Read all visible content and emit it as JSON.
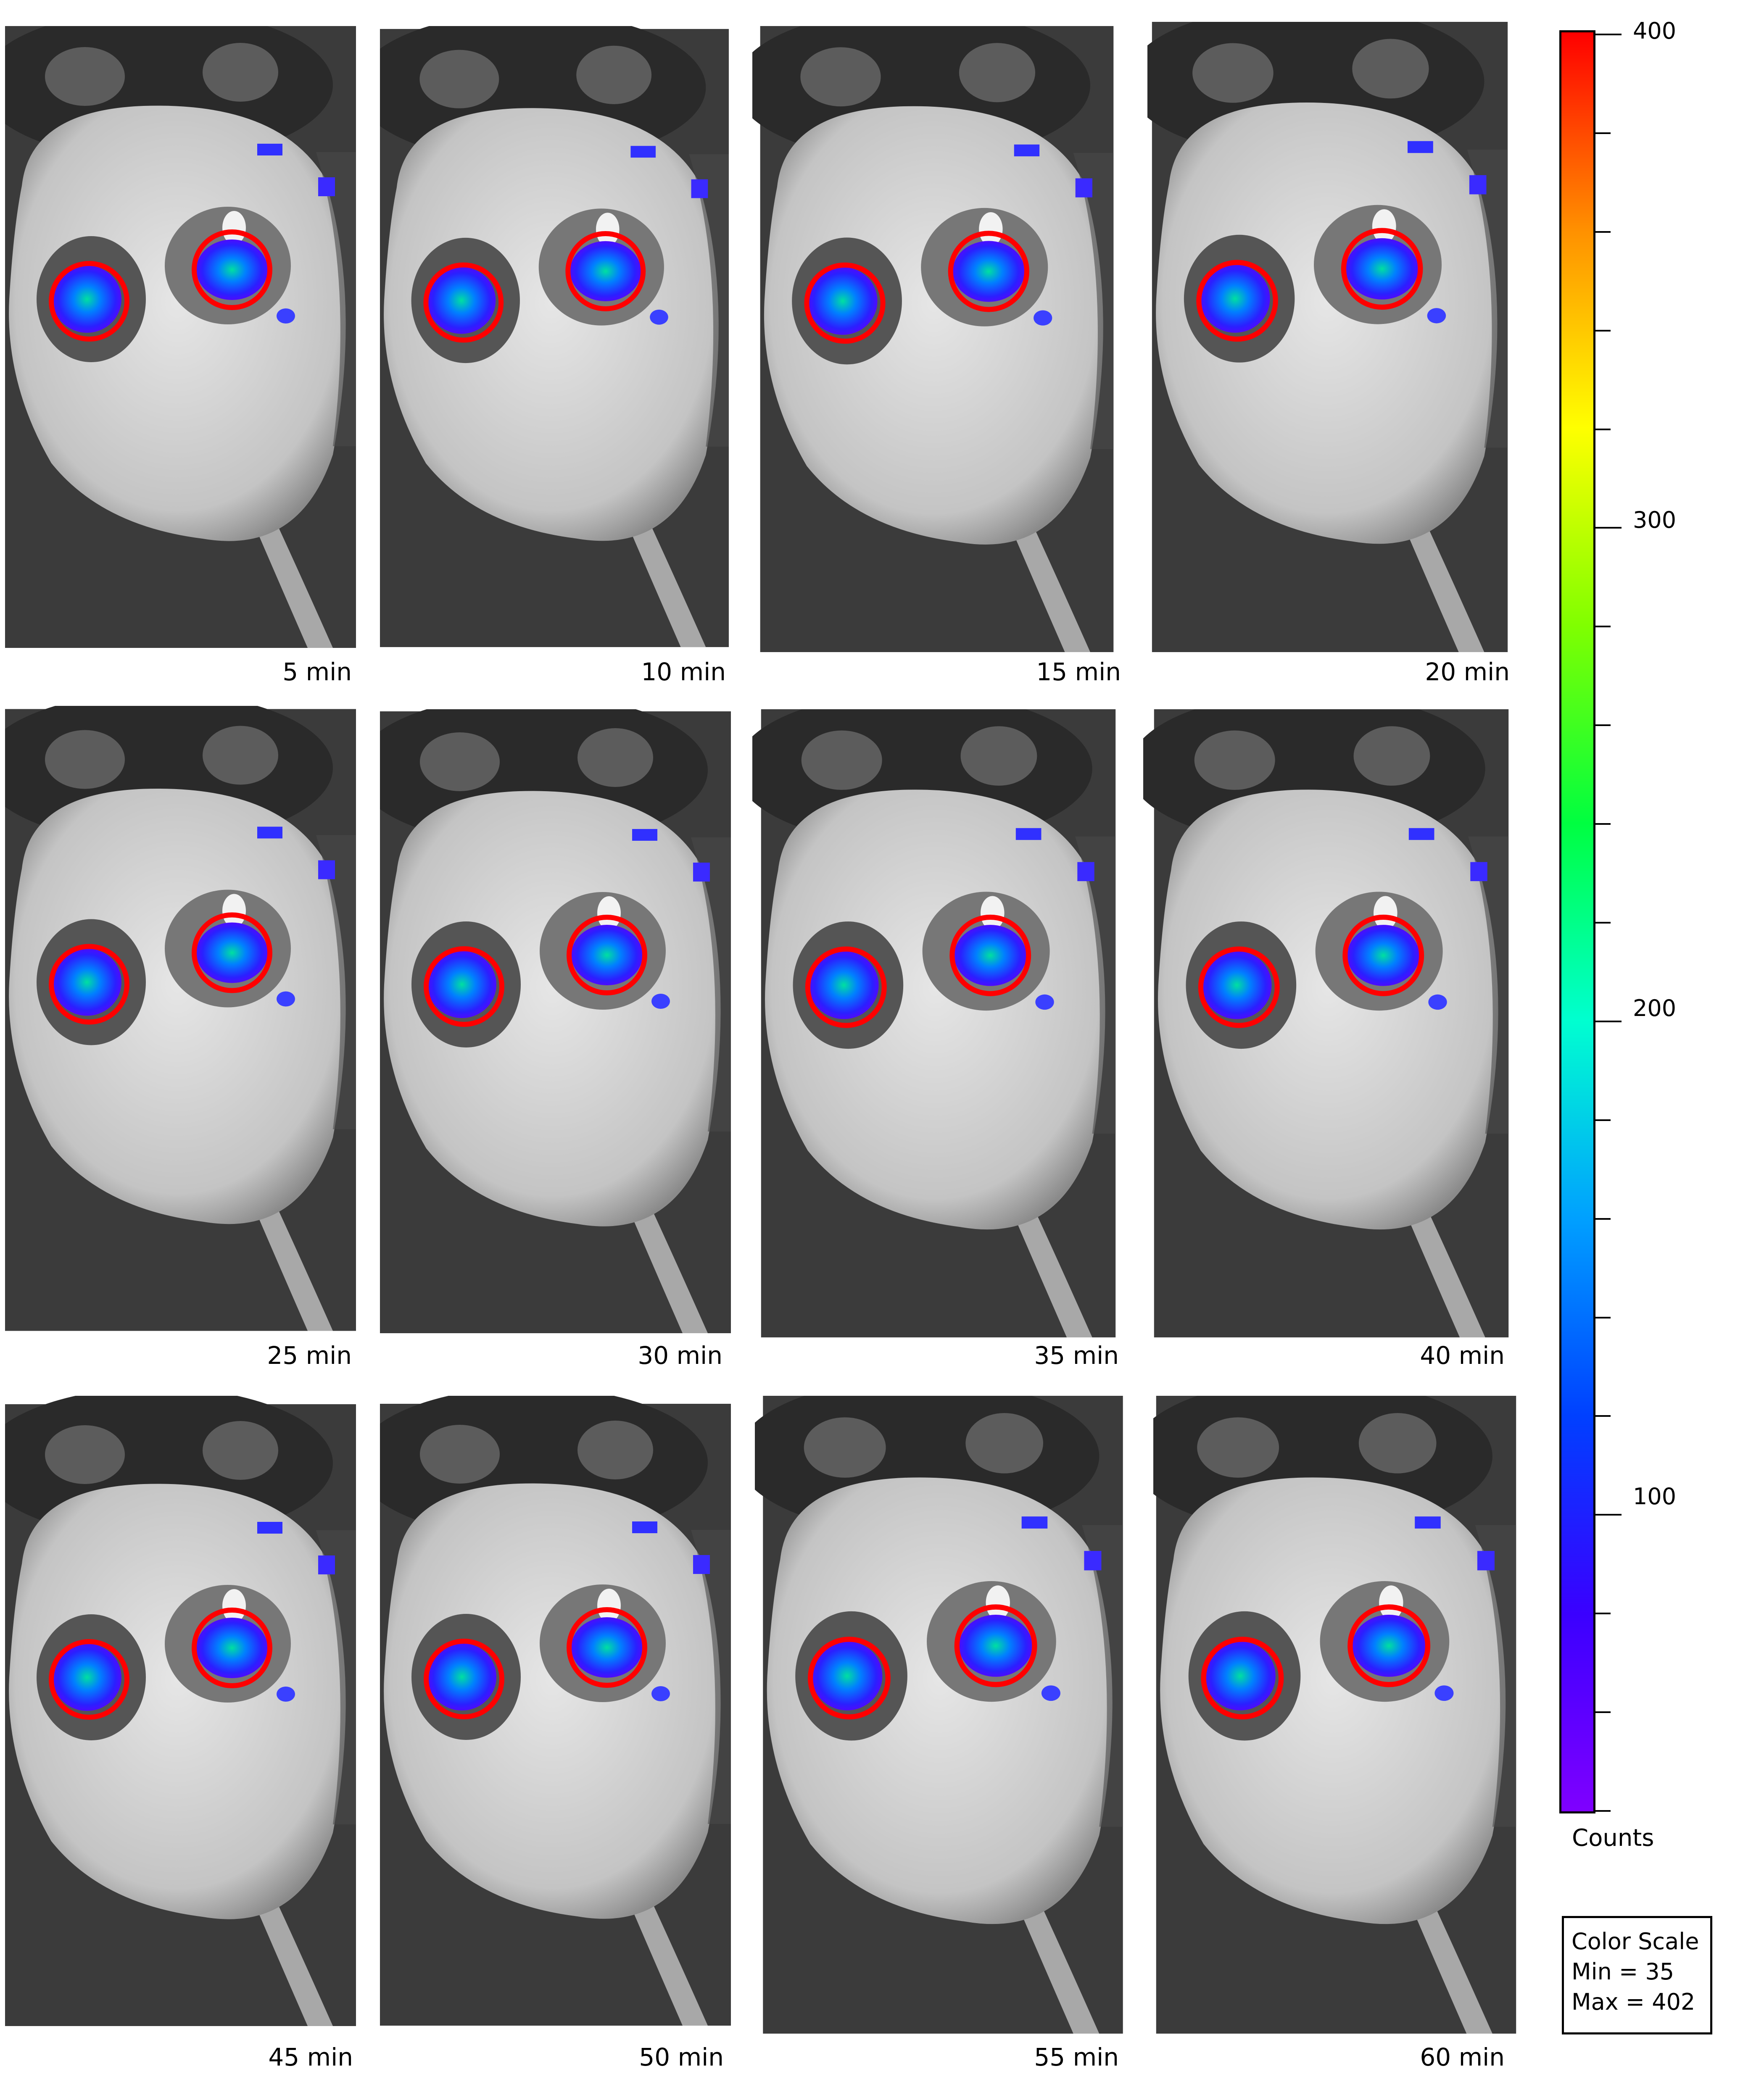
{
  "panels": [
    {
      "label": "5 min"
    },
    {
      "label": "10 min"
    },
    {
      "label": "15 min"
    },
    {
      "label": "20 min"
    },
    {
      "label": "25 min"
    },
    {
      "label": "30 min"
    },
    {
      "label": "35 min"
    },
    {
      "label": "40 min"
    },
    {
      "label": "45 min"
    },
    {
      "label": "50 min"
    },
    {
      "label": "55 min"
    },
    {
      "label": "60 min"
    }
  ],
  "colorbar": {
    "min_color": "#7f00ff",
    "max_color": "#ff0000",
    "gradient": [
      "#7f00ff",
      "#3a00ff",
      "#0040ff",
      "#00a0ff",
      "#00ffd0",
      "#00ff40",
      "#80ff00",
      "#ffff00",
      "#ff9000",
      "#ff0000"
    ],
    "tick_labels": [
      "400",
      "300",
      "200",
      "100"
    ],
    "title": "Counts"
  },
  "color_scale_box": {
    "title": "Color Scale",
    "min": "Min = 35",
    "max": "Max = 402"
  },
  "roi_color": "#ff0000"
}
